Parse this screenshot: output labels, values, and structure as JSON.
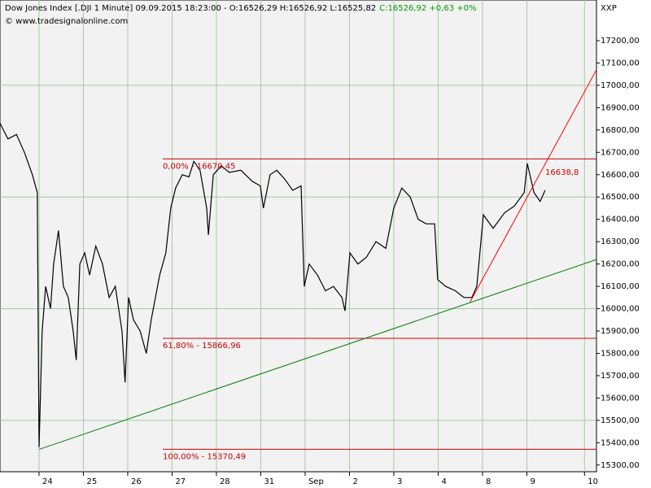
{
  "chart_data": {
    "type": "line",
    "header": {
      "instrument": "Dow Jones Index [.DJI  1 Minute] 09.09.2015 18:23:00 - O:16526,29 H:16526,92 L:16525,82",
      "close": "C:16526,92 +0,63 +0%"
    },
    "copyright": "© www.tradesignalonline.com",
    "axis_title": "XXP",
    "x": [
      -0.88,
      -0.7,
      -0.51,
      -0.33,
      -0.15,
      -0.04,
      0,
      0.07,
      0.15,
      0.26,
      0.33,
      0.44,
      0.55,
      0.66,
      0.77,
      0.84,
      0.92,
      1.03,
      1.14,
      1.28,
      1.43,
      1.58,
      1.72,
      1.87,
      1.94,
      2.02,
      2.13,
      2.28,
      2.42,
      2.53,
      2.72,
      2.86,
      2.97,
      3.08,
      3.23,
      3.38,
      3.49,
      3.63,
      3.78,
      3.82,
      3.93,
      4.11,
      4.29,
      4.55,
      4.81,
      4.99,
      5.06,
      5.21,
      5.36,
      5.54,
      5.72,
      5.91,
      5.98,
      6.09,
      6.28,
      6.46,
      6.64,
      6.83,
      6.9,
      7.01,
      7.19,
      7.38,
      7.6,
      7.82,
      8.0,
      8.18,
      8.37,
      8.55,
      8.73,
      8.92,
      8.99,
      9.17,
      9.39,
      9.58,
      9.76,
      9.87,
      9.94,
      10.02,
      10.24,
      10.5,
      10.72,
      10.94,
      11.01,
      11.16,
      11.3,
      11.41
    ],
    "series": [
      {
        "name": "Dow Jones Index",
        "color": "#000000",
        "values": [
          16830,
          16760,
          16780,
          16700,
          16600,
          16520,
          15380,
          15900,
          16100,
          16000,
          16200,
          16350,
          16100,
          16050,
          15900,
          15770,
          16200,
          16250,
          16150,
          16280,
          16200,
          16050,
          16100,
          15900,
          15670,
          16050,
          15950,
          15900,
          15800,
          15950,
          16150,
          16250,
          16450,
          16540,
          16600,
          16590,
          16660,
          16620,
          16450,
          16330,
          16600,
          16640,
          16610,
          16620,
          16570,
          16550,
          16450,
          16600,
          16620,
          16580,
          16530,
          16550,
          16100,
          16200,
          16150,
          16080,
          16100,
          16050,
          15990,
          16250,
          16200,
          16230,
          16300,
          16270,
          16450,
          16540,
          16500,
          16400,
          16380,
          16380,
          16130,
          16100,
          16080,
          16050,
          16050,
          16100,
          16250,
          16420,
          16360,
          16430,
          16460,
          16520,
          16650,
          16520,
          16480,
          16530
        ]
      }
    ],
    "trend_lines": [
      {
        "color": "#008000",
        "x": [
          0,
          12.57
        ],
        "y": [
          15370,
          16220
        ]
      },
      {
        "color": "#ff0000",
        "x": [
          9.72,
          12.57
        ],
        "y": [
          16030,
          17070
        ]
      }
    ],
    "levels": [
      {
        "value": 16670.45,
        "label": "0,00% - 16670,45",
        "x_start": 2.79
      },
      {
        "value": 15866.96,
        "label": "61,80% - 15866,96",
        "x_start": 2.79
      },
      {
        "value": 15370.49,
        "label": "100,00% - 15370,49",
        "x_start": 2.79
      }
    ],
    "level_color": "#cc0000",
    "trend_annotation": "16638,8",
    "xlim": [
      -0.88,
      12.57
    ],
    "xticks": [
      {
        "value": 0,
        "label": "24"
      },
      {
        "value": 1,
        "label": "25"
      },
      {
        "value": 2,
        "label": "26"
      },
      {
        "value": 3,
        "label": "27"
      },
      {
        "value": 4,
        "label": "28"
      },
      {
        "value": 5,
        "label": "31"
      },
      {
        "value": 6,
        "label": "Sep"
      },
      {
        "value": 7,
        "label": "2"
      },
      {
        "value": 8,
        "label": "3"
      },
      {
        "value": 9,
        "label": "4"
      },
      {
        "value": 10,
        "label": "8"
      },
      {
        "value": 11,
        "label": "9"
      },
      {
        "value": 12.3,
        "label": "10"
      }
    ],
    "ylim": [
      15270,
      17382
    ],
    "yticks": [
      {
        "value": 15300,
        "label": "15300,00"
      },
      {
        "value": 15400,
        "label": "15400,00"
      },
      {
        "value": 15500,
        "label": "15500,00"
      },
      {
        "value": 15600,
        "label": "15600,00"
      },
      {
        "value": 15700,
        "label": "15700,00"
      },
      {
        "value": 15800,
        "label": "15800,00"
      },
      {
        "value": 15900,
        "label": "15900,00"
      },
      {
        "value": 16000,
        "label": "16000,00"
      },
      {
        "value": 16100,
        "label": "16100,00"
      },
      {
        "value": 16200,
        "label": "16200,00"
      },
      {
        "value": 16300,
        "label": "16300,00"
      },
      {
        "value": 16400,
        "label": "16400,00"
      },
      {
        "value": 16500,
        "label": "16500,00"
      },
      {
        "value": 16600,
        "label": "16600,00"
      },
      {
        "value": 16700,
        "label": "16700,00"
      },
      {
        "value": 16800,
        "label": "16800,00"
      },
      {
        "value": 16900,
        "label": "16900,00"
      },
      {
        "value": 17000,
        "label": "17000,00"
      },
      {
        "value": 17100,
        "label": "17100,00"
      },
      {
        "value": 17200,
        "label": "17200,00"
      }
    ],
    "grid": true
  }
}
